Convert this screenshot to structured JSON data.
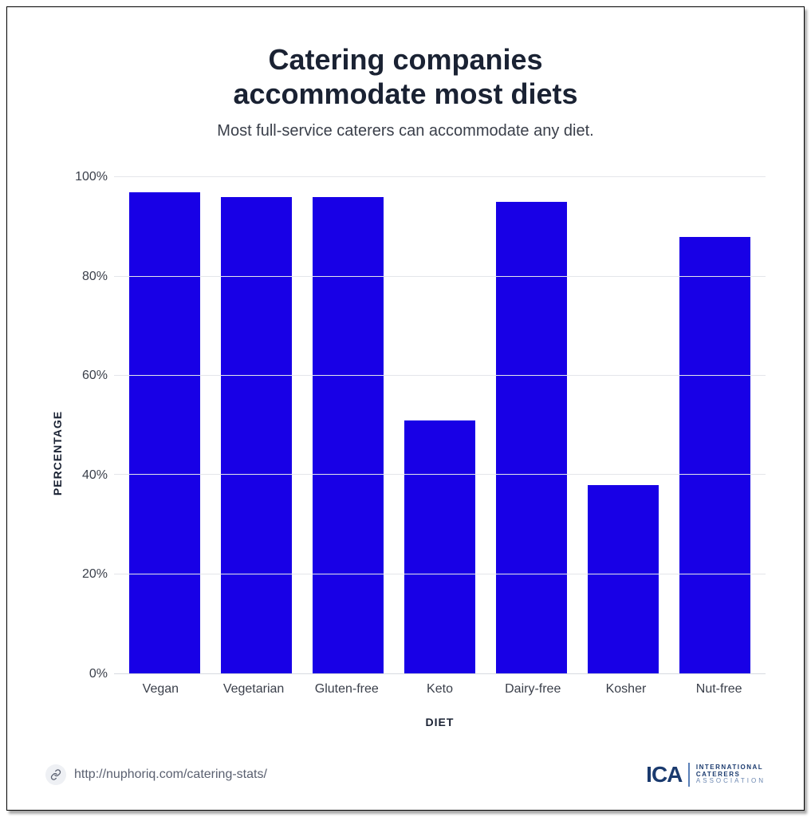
{
  "title_line1": "Catering companies",
  "title_line2": "accommodate most diets",
  "title_fontsize": 36,
  "title_color": "#1a2233",
  "subtitle": "Most full-service caterers can accommodate any diet.",
  "subtitle_fontsize": 20,
  "subtitle_color": "#3a3f4a",
  "chart": {
    "type": "bar",
    "categories": [
      "Vegan",
      "Vegetarian",
      "Gluten-free",
      "Keto",
      "Dairy-free",
      "Kosher",
      "Nut-free"
    ],
    "values": [
      97,
      96,
      96,
      51,
      95,
      38,
      88
    ],
    "bar_color": "#1800e6",
    "bar_width_pct": 78,
    "ylim": [
      0,
      100
    ],
    "yticks": [
      0,
      20,
      40,
      60,
      80,
      100
    ],
    "ytick_labels": [
      "0%",
      "20%",
      "40%",
      "60%",
      "80%",
      "100%"
    ],
    "ytick_fontsize": 16,
    "xtick_fontsize": 16,
    "axis_label_fontsize": 14,
    "x_axis_label": "DIET",
    "y_axis_label": "PERCENTAGE",
    "grid_color": "#e4e6ea",
    "axis_text_color": "#3a3f4a",
    "background_color": "#ffffff"
  },
  "source_url": "http://nuphoriq.com/catering-stats/",
  "source_fontsize": 16,
  "logo": {
    "short": "ICA",
    "short_fontsize": 28,
    "line1": "INTERNATIONAL",
    "line2": "CATERERS",
    "line3": "ASSOCIATION",
    "sub_fontsize": 8,
    "color_primary": "#1a3a6e",
    "color_secondary": "#6a86b0"
  }
}
